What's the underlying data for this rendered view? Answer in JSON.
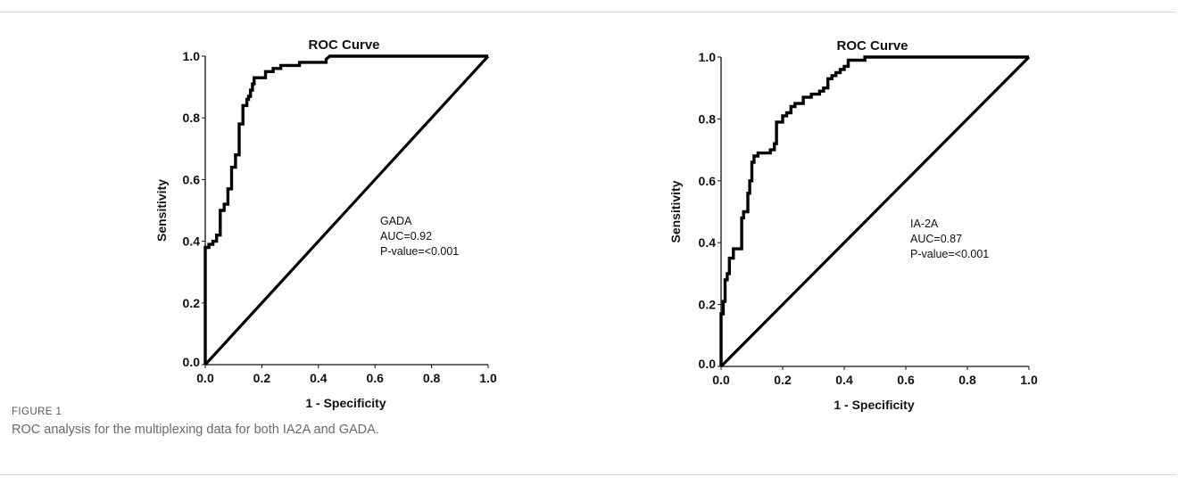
{
  "figure": {
    "label": "FIGURE 1",
    "caption": "ROC analysis for the multiplexing data for both IA2A and GADA."
  },
  "chart_data": [
    {
      "type": "line",
      "title": "ROC Curve",
      "xlabel": "1 - Specificity",
      "ylabel": "Sensitivity",
      "xlim": [
        0,
        1
      ],
      "ylim": [
        0,
        1
      ],
      "xticks": [
        "0.0",
        "0.2",
        "0.4",
        "0.6",
        "0.8",
        "1.0"
      ],
      "yticks": [
        "0.0",
        "0.2",
        "0.4",
        "0.6",
        "0.8",
        "1.0"
      ],
      "grid": false,
      "annotation": [
        "GADA",
        "AUC=0.92",
        "P-value=<0.001"
      ],
      "series": [
        {
          "role": "roc-curve",
          "x": [
            0.0,
            0.0,
            0.0,
            0.0,
            0.0,
            0.013,
            0.013,
            0.027,
            0.027,
            0.04,
            0.04,
            0.053,
            0.053,
            0.067,
            0.067,
            0.08,
            0.08,
            0.093,
            0.093,
            0.107,
            0.107,
            0.12,
            0.12,
            0.133,
            0.133,
            0.147,
            0.147,
            0.153,
            0.153,
            0.16,
            0.16,
            0.167,
            0.167,
            0.173,
            0.173,
            0.18,
            0.18,
            0.187,
            0.187,
            0.213,
            0.213,
            0.24,
            0.24,
            0.267,
            0.267,
            0.293,
            0.293,
            0.333,
            0.333,
            0.427,
            0.427,
            0.44,
            1.0
          ],
          "y": [
            0.0,
            0.25,
            0.28,
            0.35,
            0.38,
            0.38,
            0.39,
            0.39,
            0.4,
            0.4,
            0.42,
            0.42,
            0.5,
            0.5,
            0.52,
            0.52,
            0.57,
            0.57,
            0.64,
            0.64,
            0.68,
            0.68,
            0.78,
            0.78,
            0.84,
            0.84,
            0.86,
            0.86,
            0.87,
            0.87,
            0.89,
            0.89,
            0.91,
            0.91,
            0.93,
            0.93,
            0.93,
            0.93,
            0.93,
            0.93,
            0.95,
            0.95,
            0.96,
            0.96,
            0.97,
            0.97,
            0.97,
            0.97,
            0.98,
            0.98,
            0.99,
            1.0,
            1.0
          ]
        },
        {
          "role": "reference-line",
          "x": [
            0,
            1
          ],
          "y": [
            0,
            1
          ]
        }
      ]
    },
    {
      "type": "line",
      "title": "ROC Curve",
      "xlabel": "1 - Specificity",
      "ylabel": "Sensitivity",
      "xlim": [
        0,
        1
      ],
      "ylim": [
        0,
        1
      ],
      "xticks": [
        "0.0",
        "0.2",
        "0.4",
        "0.6",
        "0.8",
        "1.0"
      ],
      "yticks": [
        "0.0",
        "0.2",
        "0.4",
        "0.6",
        "0.8",
        "1.0"
      ],
      "grid": false,
      "annotation": [
        "IA-2A",
        "AUC=0.87",
        "P-value=<0.001"
      ],
      "series": [
        {
          "role": "roc-curve",
          "x": [
            0.0,
            0.0,
            0.0,
            0.007,
            0.007,
            0.013,
            0.013,
            0.02,
            0.02,
            0.027,
            0.027,
            0.04,
            0.04,
            0.067,
            0.067,
            0.073,
            0.073,
            0.087,
            0.087,
            0.093,
            0.093,
            0.1,
            0.1,
            0.107,
            0.107,
            0.12,
            0.12,
            0.16,
            0.16,
            0.173,
            0.173,
            0.18,
            0.18,
            0.2,
            0.2,
            0.213,
            0.213,
            0.227,
            0.227,
            0.24,
            0.24,
            0.267,
            0.267,
            0.293,
            0.293,
            0.32,
            0.32,
            0.333,
            0.333,
            0.347,
            0.347,
            0.36,
            0.36,
            0.373,
            0.373,
            0.387,
            0.387,
            0.4,
            0.4,
            0.413,
            0.413,
            0.467,
            0.467,
            0.76,
            0.76,
            1.0
          ],
          "y": [
            0.0,
            0.1,
            0.17,
            0.17,
            0.21,
            0.21,
            0.28,
            0.28,
            0.3,
            0.3,
            0.35,
            0.35,
            0.38,
            0.38,
            0.48,
            0.48,
            0.5,
            0.5,
            0.56,
            0.56,
            0.6,
            0.6,
            0.66,
            0.66,
            0.68,
            0.68,
            0.69,
            0.69,
            0.7,
            0.7,
            0.72,
            0.72,
            0.79,
            0.79,
            0.81,
            0.81,
            0.82,
            0.82,
            0.84,
            0.84,
            0.85,
            0.85,
            0.87,
            0.87,
            0.88,
            0.88,
            0.89,
            0.89,
            0.9,
            0.9,
            0.93,
            0.93,
            0.94,
            0.94,
            0.95,
            0.95,
            0.96,
            0.96,
            0.97,
            0.97,
            0.99,
            0.99,
            1.0,
            1.0,
            1.0,
            1.0
          ]
        },
        {
          "role": "reference-line",
          "x": [
            0,
            1
          ],
          "y": [
            0,
            1
          ]
        }
      ]
    }
  ]
}
